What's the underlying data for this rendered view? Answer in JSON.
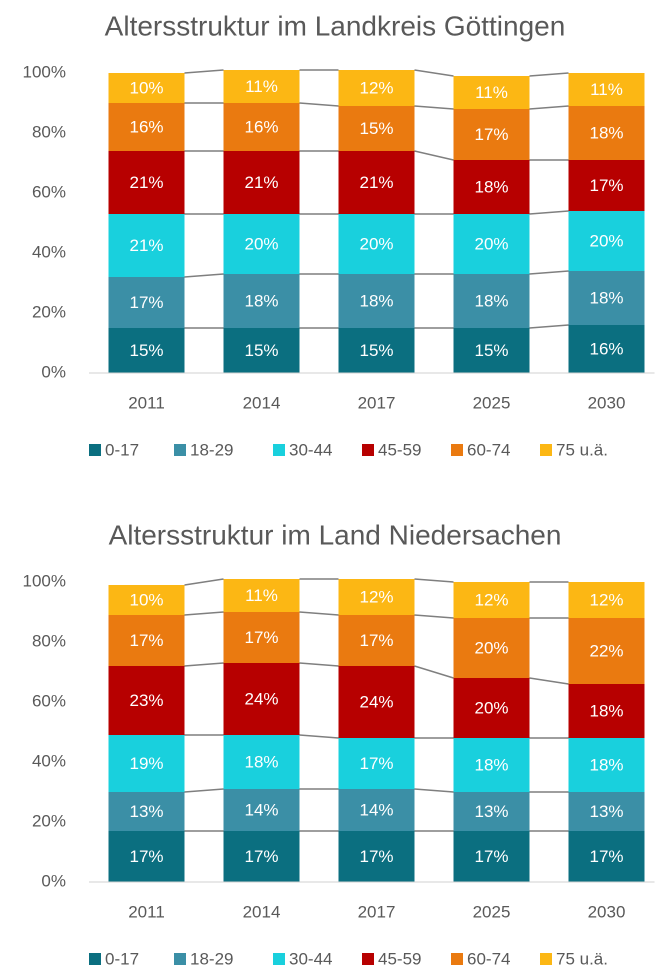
{
  "chart_data": [
    {
      "type": "stacked_bar",
      "title": "Altersstruktur im Landkreis Göttingen",
      "categories": [
        "2011",
        "2014",
        "2017",
        "2025",
        "2030"
      ],
      "ylim": [
        0,
        100
      ],
      "yticks": [
        {
          "value": 0,
          "label": "0%"
        },
        {
          "value": 20,
          "label": "20%"
        },
        {
          "value": 40,
          "label": "40%"
        },
        {
          "value": 60,
          "label": "60%"
        },
        {
          "value": 80,
          "label": "80%"
        },
        {
          "value": 100,
          "label": "100%"
        }
      ],
      "series": [
        {
          "name": "0-17",
          "color": "#0b6f80",
          "values": [
            15,
            15,
            15,
            15,
            16
          ],
          "value_labels": [
            "15%",
            "15%",
            "15%",
            "15%",
            "16%"
          ]
        },
        {
          "name": "18-29",
          "color": "#3b8fa6",
          "values": [
            17,
            18,
            18,
            18,
            18
          ],
          "value_labels": [
            "17%",
            "18%",
            "18%",
            "18%",
            "18%"
          ]
        },
        {
          "name": "30-44",
          "color": "#19d0dd",
          "values": [
            21,
            20,
            20,
            20,
            20
          ],
          "value_labels": [
            "21%",
            "20%",
            "20%",
            "20%",
            "20%"
          ]
        },
        {
          "name": "45-59",
          "color": "#b70000",
          "values": [
            21,
            21,
            21,
            18,
            17
          ],
          "value_labels": [
            "21%",
            "21%",
            "21%",
            "18%",
            "17%"
          ]
        },
        {
          "name": "60-74",
          "color": "#ea7a10",
          "values": [
            16,
            16,
            15,
            17,
            18
          ],
          "value_labels": [
            "16%",
            "16%",
            "15%",
            "17%",
            "18%"
          ]
        },
        {
          "name": "75 u.ä.",
          "color": "#fcb714",
          "values": [
            10,
            11,
            12,
            11,
            11
          ],
          "value_labels": [
            "10%",
            "11%",
            "12%",
            "11%",
            "11%"
          ]
        }
      ]
    },
    {
      "type": "stacked_bar",
      "title": "Altersstruktur im Land Niedersachen",
      "categories": [
        "2011",
        "2014",
        "2017",
        "2025",
        "2030"
      ],
      "ylim": [
        0,
        100
      ],
      "yticks": [
        {
          "value": 0,
          "label": "0%"
        },
        {
          "value": 20,
          "label": "20%"
        },
        {
          "value": 40,
          "label": "40%"
        },
        {
          "value": 60,
          "label": "60%"
        },
        {
          "value": 80,
          "label": "80%"
        },
        {
          "value": 100,
          "label": "100%"
        }
      ],
      "series": [
        {
          "name": "0-17",
          "color": "#0b6f80",
          "values": [
            17,
            17,
            17,
            17,
            17
          ],
          "value_labels": [
            "17%",
            "17%",
            "17%",
            "17%",
            "17%"
          ]
        },
        {
          "name": "18-29",
          "color": "#3b8fa6",
          "values": [
            13,
            14,
            14,
            13,
            13
          ],
          "value_labels": [
            "13%",
            "14%",
            "14%",
            "13%",
            "13%"
          ]
        },
        {
          "name": "30-44",
          "color": "#19d0dd",
          "values": [
            19,
            18,
            17,
            18,
            18
          ],
          "value_labels": [
            "19%",
            "18%",
            "17%",
            "18%",
            "18%"
          ]
        },
        {
          "name": "45-59",
          "color": "#b70000",
          "values": [
            23,
            24,
            24,
            20,
            18
          ],
          "value_labels": [
            "23%",
            "24%",
            "24%",
            "20%",
            "18%"
          ]
        },
        {
          "name": "60-74",
          "color": "#ea7a10",
          "values": [
            17,
            17,
            17,
            20,
            22
          ],
          "value_labels": [
            "17%",
            "17%",
            "17%",
            "20%",
            "22%"
          ]
        },
        {
          "name": "75 u.ä.",
          "color": "#fcb714",
          "values": [
            10,
            11,
            12,
            12,
            12
          ],
          "value_labels": [
            "10%",
            "11%",
            "12%",
            "12%",
            "12%"
          ]
        }
      ]
    }
  ]
}
